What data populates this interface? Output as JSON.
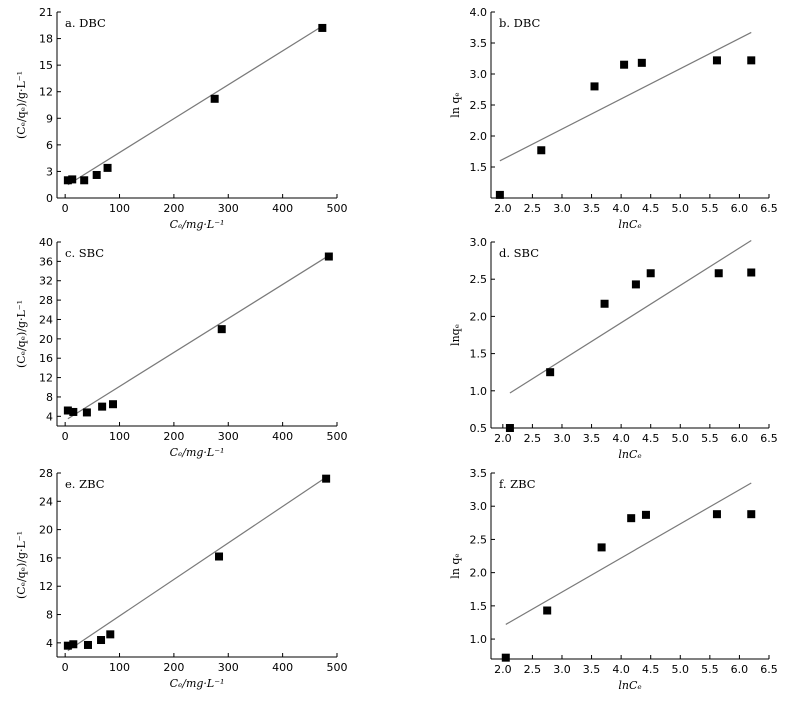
{
  "chart_data": [
    {
      "id": "a",
      "type": "scatter",
      "title": "a. DBC",
      "xlabel": "Cₑ/mg·L⁻¹",
      "ylabel": "(Cₑ/qₑ)/g·L⁻¹",
      "xlim": [
        -15,
        500
      ],
      "ylim": [
        0,
        21
      ],
      "xticks": [
        0,
        100,
        200,
        300,
        400,
        500
      ],
      "xtick_labels": [
        "0",
        "100",
        "200",
        "300",
        "400",
        "500"
      ],
      "yticks": [
        0,
        3,
        6,
        9,
        12,
        15,
        18,
        21
      ],
      "ytick_labels": [
        "0",
        "3",
        "6",
        "9",
        "12",
        "15",
        "18",
        "21"
      ],
      "x": [
        5,
        13,
        35,
        58,
        78,
        275,
        473
      ],
      "y": [
        2.0,
        2.1,
        2.0,
        2.6,
        3.4,
        11.2,
        19.2
      ],
      "fit": [
        [
          5,
          1.5
        ],
        [
          473,
          19.4
        ]
      ]
    },
    {
      "id": "b",
      "type": "scatter",
      "title": "b. DBC",
      "xlabel": "lnCₑ",
      "ylabel": "ln qₑ",
      "xlim": [
        1.8,
        6.5
      ],
      "ylim": [
        1.0,
        4.0
      ],
      "xticks": [
        2.0,
        2.5,
        3.0,
        3.5,
        4.0,
        4.5,
        5.0,
        5.5,
        6.0,
        6.5
      ],
      "xtick_labels": [
        "2.0",
        "2.5",
        "3.0",
        "3.5",
        "4.0",
        "4.5",
        "5.0",
        "5.5",
        "6.0",
        "6.5"
      ],
      "yticks": [
        1.5,
        2.0,
        2.5,
        3.0,
        3.5,
        4.0
      ],
      "ytick_labels": [
        "1.5",
        "2.0",
        "2.5",
        "3.0",
        "3.5",
        "4.0"
      ],
      "x": [
        1.95,
        2.65,
        3.55,
        4.05,
        4.35,
        5.62,
        6.2
      ],
      "y": [
        1.05,
        1.77,
        2.8,
        3.15,
        3.18,
        3.22,
        3.22
      ],
      "fit": [
        [
          1.95,
          1.6
        ],
        [
          6.2,
          3.67
        ]
      ]
    },
    {
      "id": "c",
      "type": "scatter",
      "title": "c. SBC",
      "xlabel": "Cₑ/mg·L⁻¹",
      "ylabel": "(Cₑ/qₑ)/g·L⁻¹",
      "xlim": [
        -15,
        500
      ],
      "ylim": [
        2,
        40
      ],
      "xticks": [
        0,
        100,
        200,
        300,
        400,
        500
      ],
      "xtick_labels": [
        "0",
        "100",
        "200",
        "300",
        "400",
        "500"
      ],
      "yticks": [
        4,
        8,
        12,
        16,
        20,
        24,
        28,
        32,
        36,
        40
      ],
      "ytick_labels": [
        "4",
        "8",
        "12",
        "16",
        "20",
        "24",
        "28",
        "32",
        "36",
        "40"
      ],
      "x": [
        5,
        15,
        40,
        68,
        88,
        288,
        485
      ],
      "y": [
        5.2,
        4.9,
        4.8,
        6.0,
        6.5,
        22.0,
        37.0
      ],
      "fit": [
        [
          5,
          3.5
        ],
        [
          485,
          37.2
        ]
      ]
    },
    {
      "id": "d",
      "type": "scatter",
      "title": "d. SBC",
      "xlabel": "lnCₑ",
      "ylabel": "lnqₑ",
      "xlim": [
        1.8,
        6.5
      ],
      "ylim": [
        0.5,
        3.0
      ],
      "xticks": [
        2.0,
        2.5,
        3.0,
        3.5,
        4.0,
        4.5,
        5.0,
        5.5,
        6.0,
        6.5
      ],
      "xtick_labels": [
        "2.0",
        "2.5",
        "3.0",
        "3.5",
        "4.0",
        "4.5",
        "5.0",
        "5.5",
        "6.0",
        "6.5"
      ],
      "yticks": [
        0.5,
        1.0,
        1.5,
        2.0,
        2.5,
        3.0
      ],
      "ytick_labels": [
        "0.5",
        "1.0",
        "1.5",
        "2.0",
        "2.5",
        "3.0"
      ],
      "x": [
        2.12,
        2.8,
        3.72,
        4.25,
        4.5,
        5.65,
        6.2
      ],
      "y": [
        0.5,
        1.25,
        2.17,
        2.43,
        2.58,
        2.58,
        2.59
      ],
      "fit": [
        [
          2.12,
          0.97
        ],
        [
          6.2,
          3.02
        ]
      ]
    },
    {
      "id": "e",
      "type": "scatter",
      "title": "e. ZBC",
      "xlabel": "Cₑ/mg·L⁻¹",
      "ylabel": "(Cₑ/qₑ)/g·L⁻¹",
      "xlim": [
        -15,
        500
      ],
      "ylim": [
        2,
        28
      ],
      "xticks": [
        0,
        100,
        200,
        300,
        400,
        500
      ],
      "xtick_labels": [
        "0",
        "100",
        "200",
        "300",
        "400",
        "500"
      ],
      "yticks": [
        4,
        8,
        12,
        16,
        20,
        24,
        28
      ],
      "ytick_labels": [
        "4",
        "8",
        "12",
        "16",
        "20",
        "24",
        "28"
      ],
      "x": [
        5,
        15,
        42,
        66,
        83,
        283,
        480
      ],
      "y": [
        3.6,
        3.8,
        3.7,
        4.4,
        5.2,
        16.2,
        27.2
      ],
      "fit": [
        [
          5,
          2.9
        ],
        [
          480,
          27.4
        ]
      ]
    },
    {
      "id": "f",
      "type": "scatter",
      "title": "f. ZBC",
      "xlabel": "lnCₑ",
      "ylabel": "ln qₑ",
      "xlim": [
        1.8,
        6.5
      ],
      "ylim": [
        0.7,
        3.5
      ],
      "xticks": [
        2.0,
        2.5,
        3.0,
        3.5,
        4.0,
        4.5,
        5.0,
        5.5,
        6.0,
        6.5
      ],
      "xtick_labels": [
        "2.0",
        "2.5",
        "3.0",
        "3.5",
        "4.0",
        "4.5",
        "5.0",
        "5.5",
        "6.0",
        "6.5"
      ],
      "yticks": [
        1.0,
        1.5,
        2.0,
        2.5,
        3.0,
        3.5
      ],
      "ytick_labels": [
        "1.0",
        "1.5",
        "2.0",
        "2.5",
        "3.0",
        "3.5"
      ],
      "x": [
        2.05,
        2.75,
        3.67,
        4.17,
        4.42,
        5.62,
        6.2
      ],
      "y": [
        0.72,
        1.43,
        2.38,
        2.82,
        2.87,
        2.88,
        2.88
      ],
      "fit": [
        [
          2.05,
          1.22
        ],
        [
          6.2,
          3.35
        ]
      ]
    }
  ]
}
